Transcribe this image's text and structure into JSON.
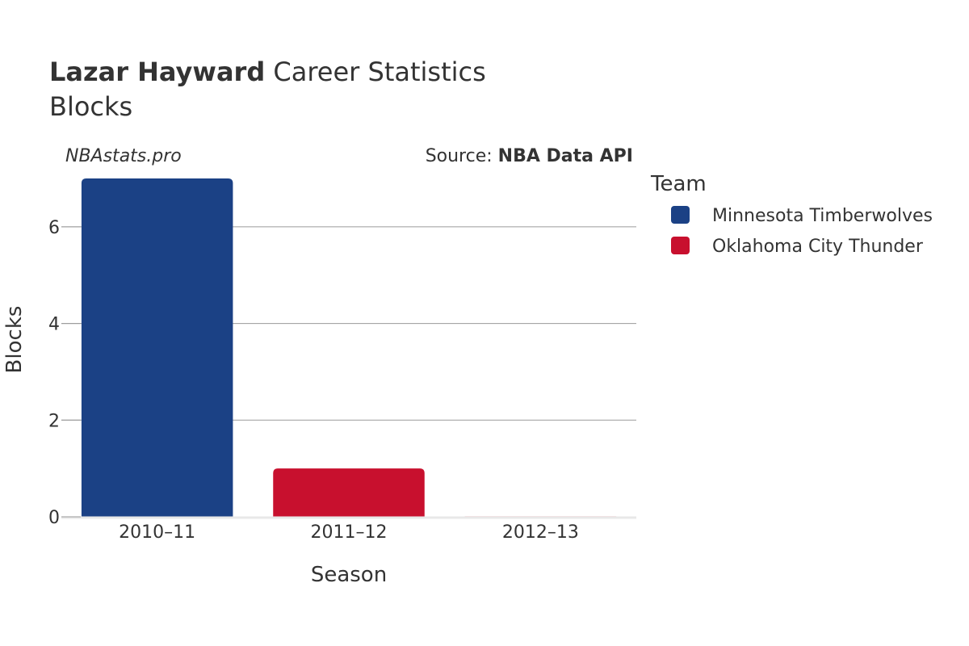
{
  "header": {
    "player_name": "Lazar Hayward",
    "title_rest": " Career Statistics",
    "subtitle": "Blocks"
  },
  "credits": {
    "site": "NBAstats.pro",
    "source_prefix": "Source: ",
    "source_name": "NBA Data API"
  },
  "colors": {
    "Minnesota Timberwolves": "#1b4185",
    "Oklahoma City Thunder": "#c8102e"
  },
  "chart_data": {
    "type": "bar",
    "xlabel": "Season",
    "ylabel": "Blocks",
    "ylim": [
      0,
      7
    ],
    "yticks": [
      0,
      2,
      4,
      6
    ],
    "categories": [
      "2010–11",
      "2011–12",
      "2012–13"
    ],
    "series": [
      {
        "name": "Minnesota Timberwolves",
        "values": [
          7,
          null,
          null
        ]
      },
      {
        "name": "Oklahoma City Thunder",
        "values": [
          null,
          1,
          0
        ]
      }
    ],
    "grid": true,
    "legend": {
      "title": "Team",
      "placement": "right",
      "entries": [
        "Minnesota Timberwolves",
        "Oklahoma City Thunder"
      ]
    }
  }
}
